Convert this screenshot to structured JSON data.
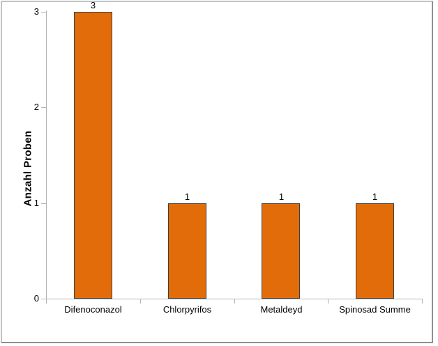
{
  "chart_data": {
    "type": "bar",
    "categories": [
      "Difenoconazol",
      "Chlorpyrifos",
      "Metaldeyd",
      "Spinosad Summe"
    ],
    "values": [
      3,
      1,
      1,
      1
    ],
    "data_labels": [
      "3",
      "1",
      "1",
      "1"
    ],
    "title": "",
    "xlabel": "",
    "ylabel": "Anzahl Proben",
    "y_ticks": [
      0,
      1,
      2,
      3
    ],
    "ylim": [
      0,
      3
    ],
    "grid": false,
    "legend": false,
    "show_data_labels": true,
    "bar_color": "#E36C0A",
    "bar_border_color": "#3F3F3F",
    "axis_color": "#B3B3B3",
    "text_color": "#000000",
    "frame_border_color": "#A0A0A0"
  }
}
